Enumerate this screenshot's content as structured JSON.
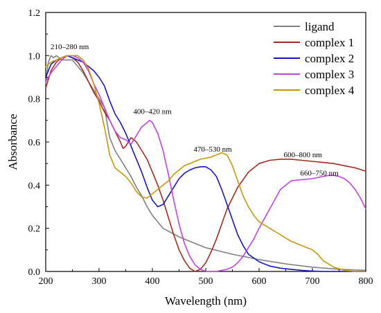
{
  "chart_data": {
    "type": "line",
    "xlabel": "Wavelength (nm)",
    "ylabel": "Absorbance",
    "xlim": [
      200,
      800
    ],
    "ylim": [
      0.0,
      1.2
    ],
    "xticks": [
      200,
      300,
      400,
      500,
      600,
      700,
      800
    ],
    "yticks": [
      0.0,
      0.2,
      0.4,
      0.6,
      0.8,
      1.0,
      1.2
    ],
    "x_tick_labels": [
      "200",
      "300",
      "400",
      "500",
      "600",
      "700",
      "800"
    ],
    "y_tick_labels": [
      "0.0",
      "0.2",
      "0.4",
      "0.6",
      "0.8",
      "1.0",
      "1.2"
    ],
    "grid": false,
    "legend_position": "top-right",
    "series": [
      {
        "name": "ligand",
        "color": "#808080",
        "x": [
          200,
          205,
          210,
          215,
          220,
          225,
          230,
          240,
          250,
          260,
          270,
          280,
          290,
          300,
          310,
          320,
          330,
          340,
          350,
          360,
          370,
          380,
          390,
          400,
          420,
          450,
          500,
          550,
          600,
          650,
          700,
          750,
          800
        ],
        "y": [
          0.87,
          0.97,
          1.0,
          0.99,
          1.0,
          0.99,
          0.98,
          0.98,
          0.98,
          0.95,
          0.92,
          0.88,
          0.84,
          0.8,
          0.76,
          0.62,
          0.56,
          0.52,
          0.48,
          0.44,
          0.39,
          0.35,
          0.3,
          0.26,
          0.2,
          0.16,
          0.11,
          0.08,
          0.055,
          0.035,
          0.02,
          0.01,
          0.005
        ]
      },
      {
        "name": "complex 1",
        "color": "#a52a1e",
        "x": [
          200,
          210,
          220,
          230,
          240,
          250,
          260,
          270,
          280,
          290,
          300,
          310,
          320,
          330,
          340,
          345,
          350,
          355,
          360,
          370,
          380,
          390,
          400,
          410,
          420,
          430,
          440,
          450,
          460,
          470,
          480,
          490,
          500,
          510,
          520,
          530,
          540,
          560,
          580,
          600,
          620,
          640,
          660,
          680,
          700,
          720,
          740,
          760,
          780,
          800
        ],
        "y": [
          0.85,
          0.93,
          0.97,
          0.99,
          1.0,
          0.99,
          0.97,
          0.93,
          0.88,
          0.83,
          0.79,
          0.74,
          0.7,
          0.65,
          0.6,
          0.57,
          0.58,
          0.6,
          0.62,
          0.6,
          0.56,
          0.52,
          0.46,
          0.4,
          0.33,
          0.25,
          0.17,
          0.1,
          0.05,
          0.015,
          0.0,
          0.01,
          0.04,
          0.09,
          0.15,
          0.22,
          0.29,
          0.39,
          0.46,
          0.5,
          0.515,
          0.52,
          0.52,
          0.515,
          0.51,
          0.505,
          0.5,
          0.49,
          0.48,
          0.465
        ]
      },
      {
        "name": "complex 2",
        "color": "#1515c8",
        "x": [
          200,
          210,
          220,
          230,
          240,
          250,
          260,
          270,
          280,
          290,
          300,
          310,
          320,
          330,
          340,
          350,
          360,
          370,
          380,
          390,
          400,
          410,
          420,
          430,
          440,
          450,
          460,
          470,
          480,
          490,
          500,
          510,
          520,
          530,
          540,
          550,
          560,
          570,
          580,
          600,
          620,
          640,
          660,
          680,
          700,
          720,
          740,
          760,
          780,
          800
        ],
        "y": [
          0.9,
          0.96,
          0.98,
          0.99,
          1.0,
          0.99,
          0.98,
          0.97,
          0.95,
          0.93,
          0.9,
          0.86,
          0.79,
          0.73,
          0.69,
          0.64,
          0.58,
          0.52,
          0.46,
          0.39,
          0.33,
          0.3,
          0.31,
          0.35,
          0.39,
          0.43,
          0.455,
          0.47,
          0.48,
          0.485,
          0.485,
          0.47,
          0.44,
          0.38,
          0.31,
          0.24,
          0.17,
          0.12,
          0.08,
          0.045,
          0.025,
          0.015,
          0.01,
          0.005,
          0.002,
          0.0,
          0.0,
          0.0,
          0.0,
          0.0
        ]
      },
      {
        "name": "complex 3",
        "color": "#c040e0",
        "x": [
          200,
          210,
          220,
          230,
          240,
          250,
          260,
          270,
          280,
          290,
          300,
          310,
          320,
          330,
          340,
          350,
          360,
          370,
          380,
          390,
          395,
          400,
          410,
          420,
          430,
          440,
          450,
          460,
          470,
          480,
          490,
          500,
          510,
          520,
          530,
          540,
          550,
          560,
          570,
          580,
          590,
          600,
          620,
          640,
          660,
          680,
          700,
          710,
          720,
          730,
          740,
          750,
          760,
          770,
          780,
          790,
          800
        ],
        "y": [
          0.88,
          0.92,
          0.95,
          0.98,
          1.0,
          1.0,
          0.99,
          0.97,
          0.93,
          0.87,
          0.82,
          0.76,
          0.7,
          0.65,
          0.62,
          0.61,
          0.59,
          0.63,
          0.67,
          0.69,
          0.7,
          0.69,
          0.64,
          0.56,
          0.45,
          0.33,
          0.22,
          0.13,
          0.07,
          0.03,
          0.01,
          0.0,
          0.0,
          0.0,
          0.005,
          0.01,
          0.02,
          0.04,
          0.07,
          0.11,
          0.15,
          0.2,
          0.29,
          0.38,
          0.42,
          0.425,
          0.43,
          0.435,
          0.44,
          0.445,
          0.445,
          0.44,
          0.43,
          0.41,
          0.38,
          0.34,
          0.29
        ]
      },
      {
        "name": "complex 4",
        "color": "#c8960c",
        "x": [
          200,
          210,
          220,
          230,
          240,
          250,
          260,
          270,
          280,
          290,
          300,
          310,
          320,
          330,
          340,
          350,
          360,
          370,
          380,
          390,
          400,
          410,
          420,
          430,
          440,
          450,
          460,
          470,
          480,
          490,
          500,
          510,
          520,
          530,
          540,
          550,
          560,
          570,
          580,
          590,
          600,
          620,
          640,
          660,
          680,
          690,
          700,
          710,
          720,
          740,
          760,
          780,
          800
        ],
        "y": [
          0.95,
          0.97,
          0.98,
          0.99,
          1.0,
          1.0,
          1.0,
          0.98,
          0.94,
          0.87,
          0.78,
          0.67,
          0.54,
          0.48,
          0.46,
          0.44,
          0.41,
          0.37,
          0.345,
          0.34,
          0.36,
          0.38,
          0.4,
          0.42,
          0.45,
          0.47,
          0.49,
          0.5,
          0.51,
          0.52,
          0.525,
          0.53,
          0.54,
          0.55,
          0.54,
          0.49,
          0.42,
          0.35,
          0.3,
          0.26,
          0.23,
          0.2,
          0.17,
          0.14,
          0.12,
          0.11,
          0.1,
          0.08,
          0.05,
          0.02,
          0.005,
          0.0,
          0.0
        ]
      }
    ],
    "annotations": [
      {
        "text": "210–280 nm",
        "x": 245,
        "y": 1.03
      },
      {
        "text": "400–420 nm",
        "x": 400,
        "y": 0.73
      },
      {
        "text": "470–530 nm",
        "x": 513,
        "y": 0.555
      },
      {
        "text": "600–800 nm",
        "x": 682,
        "y": 0.53
      },
      {
        "text": "660–750 nm",
        "x": 713,
        "y": 0.445
      }
    ]
  }
}
